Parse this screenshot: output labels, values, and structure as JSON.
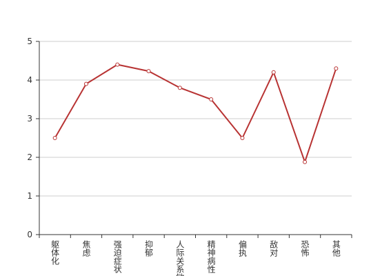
{
  "chart_data": {
    "type": "line",
    "categories": [
      "躯体化",
      "焦虑",
      "强迫症状",
      "抑郁",
      "人际关系敏感",
      "精神病性",
      "偏执",
      "敌对",
      "恐怖",
      "其他"
    ],
    "values": [
      2.5,
      3.9,
      4.4,
      4.23,
      3.8,
      3.5,
      2.5,
      4.2,
      1.88,
      4.3
    ],
    "color": "#b83333",
    "ylim": [
      0,
      5
    ],
    "yticks": [
      0,
      1,
      2,
      3,
      4,
      5
    ],
    "grid": true
  }
}
